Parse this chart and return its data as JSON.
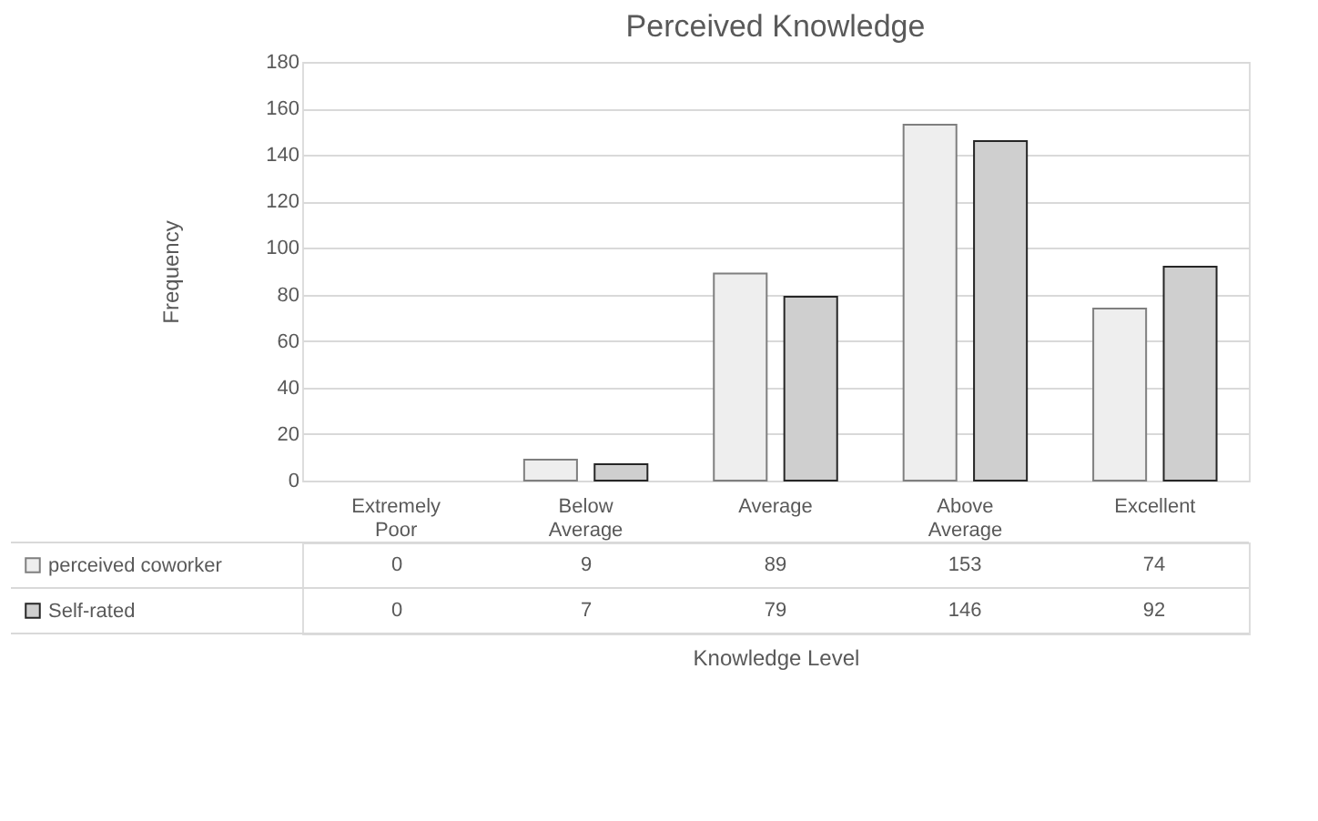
{
  "chart_data": {
    "type": "bar",
    "title": "Perceived Knowledge",
    "xlabel": "Knowledge Level",
    "ylabel": "Frequency",
    "categories": [
      "Extremely Poor",
      "Below Average",
      "Average",
      "Above Average",
      "Excellent"
    ],
    "series": [
      {
        "name": "perceived coworker",
        "color": "#eeeeee",
        "values": [
          0,
          9,
          89,
          153,
          74
        ]
      },
      {
        "name": "Self-rated",
        "color": "#cfcfcf",
        "values": [
          0,
          7,
          79,
          146,
          92
        ]
      }
    ],
    "ylim": [
      0,
      180
    ],
    "yticks": [
      0,
      20,
      40,
      60,
      80,
      100,
      120,
      140,
      160,
      180
    ],
    "grid": "y",
    "legend": "bottom",
    "data_labels": true
  }
}
